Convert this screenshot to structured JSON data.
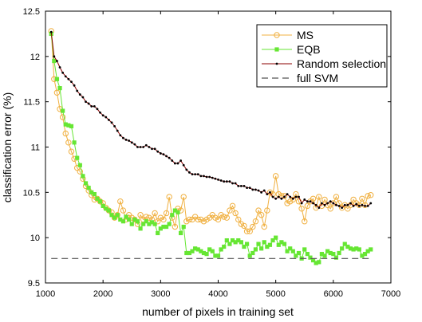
{
  "chart_data": {
    "type": "line",
    "title": "",
    "xlabel": "number of pixels in training set",
    "ylabel": "classification error (%)",
    "xlim": [
      1000,
      7000
    ],
    "ylim": [
      9.5,
      12.5
    ],
    "xticks": [
      1000,
      2000,
      3000,
      4000,
      5000,
      6000,
      7000
    ],
    "yticks": [
      9.5,
      10,
      10.5,
      11,
      11.5,
      12,
      12.5
    ],
    "xtick_labels": [
      "1000",
      "2000",
      "3000",
      "4000",
      "5000",
      "6000",
      "7000"
    ],
    "ytick_labels": [
      "9.5",
      "10",
      "10.5",
      "11",
      "11.5",
      "12",
      "12.5"
    ],
    "grid": false,
    "legend_position": "top-right",
    "series": [
      {
        "name": "MS",
        "color": "#f0b040",
        "marker": "circle",
        "x": [
          1100,
          1150,
          1200,
          1250,
          1300,
          1350,
          1400,
          1450,
          1500,
          1550,
          1600,
          1650,
          1700,
          1750,
          1800,
          1850,
          1900,
          1950,
          2000,
          2050,
          2100,
          2150,
          2200,
          2250,
          2300,
          2350,
          2400,
          2450,
          2500,
          2550,
          2600,
          2650,
          2700,
          2750,
          2800,
          2850,
          2900,
          2950,
          3000,
          3050,
          3100,
          3150,
          3200,
          3250,
          3300,
          3350,
          3400,
          3450,
          3500,
          3550,
          3600,
          3650,
          3700,
          3750,
          3800,
          3850,
          3900,
          3950,
          4000,
          4050,
          4100,
          4150,
          4200,
          4250,
          4300,
          4350,
          4400,
          4450,
          4500,
          4550,
          4600,
          4650,
          4700,
          4750,
          4800,
          4850,
          4900,
          4950,
          5000,
          5050,
          5100,
          5150,
          5200,
          5250,
          5300,
          5350,
          5400,
          5450,
          5500,
          5550,
          5600,
          5650,
          5700,
          5750,
          5800,
          5850,
          5900,
          5950,
          6000,
          6050,
          6100,
          6150,
          6200,
          6250,
          6300,
          6350,
          6400,
          6450,
          6500,
          6550,
          6600,
          6650
        ],
        "y": [
          12.28,
          11.75,
          11.6,
          11.42,
          11.33,
          11.15,
          11.05,
          10.95,
          10.87,
          10.77,
          10.73,
          10.65,
          10.57,
          10.52,
          10.47,
          10.42,
          10.43,
          10.4,
          10.38,
          10.33,
          10.3,
          10.28,
          10.22,
          10.25,
          10.4,
          10.3,
          10.2,
          10.25,
          10.22,
          10.2,
          10.15,
          10.25,
          10.2,
          10.23,
          10.22,
          10.2,
          10.27,
          10.18,
          10.22,
          10.2,
          10.27,
          10.45,
          10.22,
          10.12,
          10.32,
          10.3,
          10.45,
          10.18,
          10.2,
          10.2,
          10.23,
          10.2,
          10.2,
          10.18,
          10.2,
          10.22,
          10.25,
          10.22,
          10.2,
          10.25,
          10.23,
          10.22,
          10.3,
          10.35,
          10.27,
          10.2,
          10.15,
          10.13,
          10.07,
          10.07,
          10.12,
          10.18,
          10.3,
          10.25,
          10.12,
          10.3,
          10.5,
          10.48,
          10.68,
          10.48,
          10.46,
          10.46,
          10.38,
          10.4,
          10.42,
          10.48,
          10.4,
          10.32,
          10.18,
          10.35,
          10.4,
          10.43,
          10.33,
          10.45,
          10.35,
          10.42,
          10.36,
          10.32,
          10.38,
          10.45,
          10.38,
          10.33,
          10.36,
          10.32,
          10.36,
          10.42,
          10.38,
          10.36,
          10.43,
          10.36,
          10.46,
          10.47
        ]
      },
      {
        "name": "EQB",
        "color": "#66e633",
        "marker": "square",
        "x": [
          1100,
          1150,
          1200,
          1250,
          1300,
          1350,
          1400,
          1450,
          1500,
          1550,
          1600,
          1650,
          1700,
          1750,
          1800,
          1850,
          1900,
          1950,
          2000,
          2050,
          2100,
          2150,
          2200,
          2250,
          2300,
          2350,
          2400,
          2450,
          2500,
          2550,
          2600,
          2650,
          2700,
          2750,
          2800,
          2850,
          2900,
          2950,
          3000,
          3050,
          3100,
          3150,
          3200,
          3250,
          3300,
          3350,
          3400,
          3450,
          3500,
          3550,
          3600,
          3650,
          3700,
          3750,
          3800,
          3850,
          3900,
          3950,
          4000,
          4050,
          4100,
          4150,
          4200,
          4250,
          4300,
          4350,
          4400,
          4450,
          4500,
          4550,
          4600,
          4650,
          4700,
          4750,
          4800,
          4850,
          4900,
          4950,
          5000,
          5050,
          5100,
          5150,
          5200,
          5250,
          5300,
          5350,
          5400,
          5450,
          5500,
          5550,
          5600,
          5650,
          5700,
          5750,
          5800,
          5850,
          5900,
          5950,
          6000,
          6050,
          6100,
          6150,
          6200,
          6250,
          6300,
          6350,
          6400,
          6450,
          6500,
          6550,
          6600,
          6650
        ],
        "y": [
          12.25,
          11.95,
          11.75,
          11.65,
          11.4,
          11.25,
          11.24,
          11.23,
          11.05,
          10.88,
          10.8,
          10.68,
          10.6,
          10.55,
          10.5,
          10.48,
          10.43,
          10.4,
          10.35,
          10.32,
          10.3,
          10.25,
          10.22,
          10.25,
          10.2,
          10.18,
          10.23,
          10.2,
          10.15,
          10.2,
          10.18,
          10.1,
          10.15,
          10.18,
          10.15,
          10.17,
          10.15,
          10.05,
          10.1,
          10.12,
          10.12,
          10.15,
          10.25,
          10.3,
          10.28,
          10.05,
          10.12,
          9.83,
          9.83,
          9.85,
          9.88,
          9.87,
          9.85,
          9.83,
          9.82,
          9.87,
          9.85,
          9.8,
          9.8,
          9.87,
          9.9,
          9.97,
          9.93,
          9.97,
          9.95,
          9.97,
          9.95,
          9.9,
          9.93,
          9.8,
          9.83,
          9.87,
          9.93,
          9.88,
          9.95,
          9.9,
          9.92,
          9.97,
          10.0,
          9.92,
          9.95,
          9.93,
          9.85,
          9.88,
          9.85,
          9.8,
          9.83,
          9.77,
          9.87,
          9.82,
          9.78,
          9.75,
          9.72,
          9.73,
          9.82,
          9.8,
          9.85,
          9.83,
          9.82,
          9.78,
          9.83,
          9.88,
          9.93,
          9.9,
          9.88,
          9.87,
          9.88,
          9.87,
          9.8,
          9.82,
          9.85,
          9.87
        ]
      },
      {
        "name": "Random selection",
        "color": "#8b0000",
        "marker": "dot",
        "x": [
          1100,
          1150,
          1200,
          1250,
          1300,
          1350,
          1400,
          1450,
          1500,
          1550,
          1600,
          1650,
          1700,
          1750,
          1800,
          1850,
          1900,
          1950,
          2000,
          2050,
          2100,
          2150,
          2200,
          2250,
          2300,
          2350,
          2400,
          2450,
          2500,
          2550,
          2600,
          2650,
          2700,
          2750,
          2800,
          2850,
          2900,
          2950,
          3000,
          3050,
          3100,
          3150,
          3200,
          3250,
          3300,
          3350,
          3400,
          3450,
          3500,
          3550,
          3600,
          3650,
          3700,
          3750,
          3800,
          3850,
          3900,
          3950,
          4000,
          4050,
          4100,
          4150,
          4200,
          4250,
          4300,
          4350,
          4400,
          4450,
          4500,
          4550,
          4600,
          4650,
          4700,
          4750,
          4800,
          4850,
          4900,
          4950,
          5000,
          5050,
          5100,
          5150,
          5200,
          5250,
          5300,
          5350,
          5400,
          5450,
          5500,
          5550,
          5600,
          5650,
          5700,
          5750,
          5800,
          5850,
          5900,
          5950,
          6000,
          6050,
          6100,
          6150,
          6200,
          6250,
          6300,
          6350,
          6400,
          6450,
          6500,
          6550,
          6600,
          6650
        ],
        "y": [
          12.27,
          12.0,
          11.95,
          11.88,
          11.82,
          11.78,
          11.75,
          11.72,
          11.68,
          11.62,
          11.58,
          11.55,
          11.5,
          11.48,
          11.45,
          11.45,
          11.42,
          11.38,
          11.35,
          11.33,
          11.3,
          11.27,
          11.23,
          11.18,
          11.13,
          11.1,
          11.08,
          11.07,
          11.05,
          11.03,
          11.0,
          11.0,
          11.0,
          11.02,
          11.0,
          10.98,
          10.98,
          10.95,
          10.93,
          10.92,
          10.9,
          10.88,
          10.85,
          10.82,
          10.82,
          10.85,
          10.8,
          10.75,
          10.72,
          10.7,
          10.7,
          10.7,
          10.68,
          10.68,
          10.67,
          10.67,
          10.66,
          10.65,
          10.64,
          10.63,
          10.62,
          10.62,
          10.62,
          10.6,
          10.6,
          10.57,
          10.57,
          10.57,
          10.55,
          10.55,
          10.53,
          10.53,
          10.52,
          10.5,
          10.52,
          10.48,
          10.5,
          10.45,
          10.43,
          10.45,
          10.43,
          10.45,
          10.48,
          10.45,
          10.43,
          10.45,
          10.45,
          10.38,
          10.42,
          10.4,
          10.4,
          10.38,
          10.36,
          10.33,
          10.38,
          10.36,
          10.38,
          10.4,
          10.38,
          10.36,
          10.35,
          10.33,
          10.36,
          10.36,
          10.38,
          10.35,
          10.37,
          10.35,
          10.36,
          10.35,
          10.35,
          10.38
        ]
      },
      {
        "name": "full SVM",
        "color": "#555555",
        "style": "dashed",
        "x": [
          1100,
          6650
        ],
        "y": [
          9.77,
          9.77
        ]
      }
    ]
  }
}
